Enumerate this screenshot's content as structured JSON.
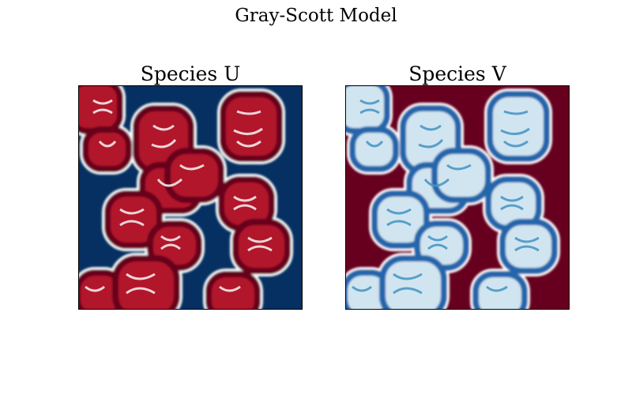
{
  "figure": {
    "title": "Gray-Scott Model"
  },
  "panels": [
    {
      "title": "Species U",
      "colormap": "RdBu_r",
      "background_color": "#053061",
      "pattern_color": "#67001f"
    },
    {
      "title": "Species V",
      "colormap": "RdBu",
      "background_color": "#67001f",
      "pattern_color": "#053061"
    }
  ]
}
